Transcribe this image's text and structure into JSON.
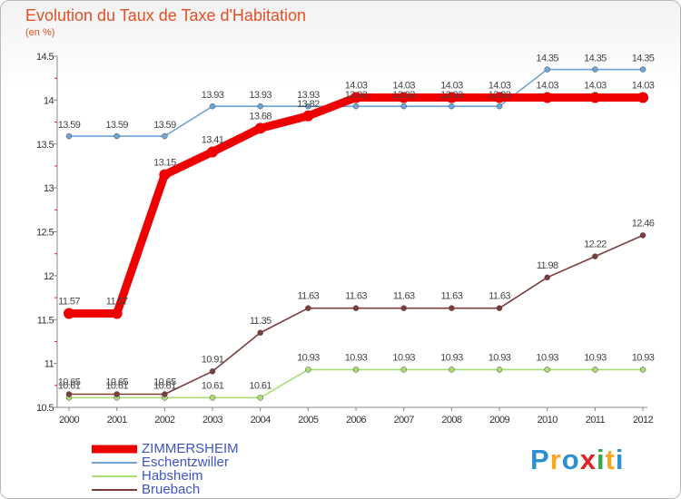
{
  "title": "Evolution du Taux de Taxe d'Habitation",
  "unit": "(en %)",
  "brand": {
    "letters": [
      "P",
      "r",
      "o",
      "x",
      "i",
      "t",
      "i"
    ],
    "colors": [
      "#2e8fce",
      "#f5a623",
      "#2e8fce",
      "#e02424",
      "#2ea84a",
      "#f5a623",
      "#2e8fce"
    ]
  },
  "chart_data": {
    "type": "line",
    "categories": [
      "2000",
      "2001",
      "2002",
      "2003",
      "2004",
      "2005",
      "2006",
      "2007",
      "2008",
      "2009",
      "2010",
      "2011",
      "2012"
    ],
    "ylim": [
      10.5,
      14.5
    ],
    "yticks": [
      "10.5",
      "11",
      "11.5",
      "12",
      "12.5",
      "13",
      "13.5",
      "14",
      "14.5"
    ],
    "grid": false,
    "legend": "bottom-left",
    "series": [
      {
        "name": "ZIMMERSHEIM",
        "color": "#ee0000",
        "values": [
          11.57,
          11.57,
          13.15,
          13.41,
          13.68,
          13.82,
          14.03,
          14.03,
          14.03,
          14.03,
          14.03,
          14.03,
          14.03
        ],
        "labels": [
          "11.57",
          "11.57",
          "13.15",
          "13.41",
          "13.68",
          "13.82",
          "14.03",
          "14.03",
          "14.03",
          "14.03",
          "14.03",
          "14.03",
          "14.03"
        ]
      },
      {
        "name": "Eschentzwiller",
        "color": "#6ea5d8",
        "values": [
          13.59,
          13.59,
          13.59,
          13.93,
          13.93,
          13.93,
          13.93,
          13.93,
          13.93,
          13.93,
          14.35,
          14.35,
          14.35
        ],
        "labels": [
          "13.59",
          "13.59",
          "13.59",
          "13.93",
          "13.93",
          "13.93",
          "13.93",
          "13.93",
          "13.93",
          "13.93",
          "14.35",
          "14.35",
          "14.35"
        ]
      },
      {
        "name": "Habsheim",
        "color": "#a9dd74",
        "values": [
          10.61,
          10.61,
          10.61,
          10.61,
          10.61,
          10.93,
          10.93,
          10.93,
          10.93,
          10.93,
          10.93,
          10.93,
          10.93
        ],
        "labels": [
          "10.61",
          "10.61",
          "10.61",
          "10.61",
          "10.61",
          "10.93",
          "10.93",
          "10.93",
          "10.93",
          "10.93",
          "10.93",
          "10.93",
          "10.93"
        ]
      },
      {
        "name": "Bruebach",
        "color": "#7e3b3b",
        "values": [
          10.65,
          10.65,
          10.65,
          10.91,
          11.35,
          11.63,
          11.63,
          11.63,
          11.63,
          11.63,
          11.98,
          12.22,
          12.46
        ],
        "labels": [
          "10.65",
          "10.65",
          "10.65",
          "10.91",
          "11.35",
          "11.63",
          "11.63",
          "11.63",
          "11.63",
          "11.63",
          "11.98",
          "12.22",
          "12.46"
        ]
      }
    ]
  }
}
